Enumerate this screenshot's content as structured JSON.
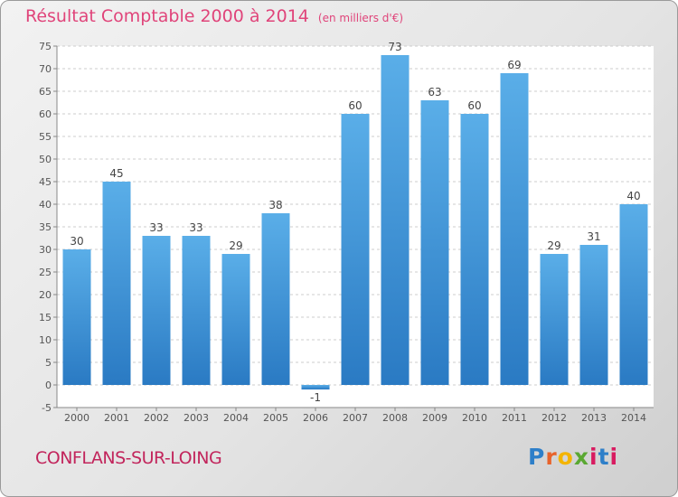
{
  "chart_data": {
    "type": "bar",
    "title": "Résultat Comptable 2000 à 2014",
    "subtitle": "(en milliers d'€)",
    "categories": [
      "2000",
      "2001",
      "2002",
      "2003",
      "2004",
      "2005",
      "2006",
      "2007",
      "2008",
      "2009",
      "2010",
      "2011",
      "2012",
      "2013",
      "2014"
    ],
    "values": [
      30,
      45,
      33,
      33,
      29,
      38,
      -1,
      60,
      73,
      63,
      60,
      69,
      29,
      31,
      40
    ],
    "ylim": [
      -5,
      75
    ],
    "yticks": [
      -5,
      0,
      5,
      10,
      15,
      20,
      25,
      30,
      35,
      40,
      45,
      50,
      55,
      60,
      65,
      70,
      75
    ],
    "grid": "horizontal dashed",
    "bar_color": "#3b8fd6"
  },
  "footer": {
    "city": "CONFLANS-SUR-LOING",
    "logo": "Proxiti"
  }
}
